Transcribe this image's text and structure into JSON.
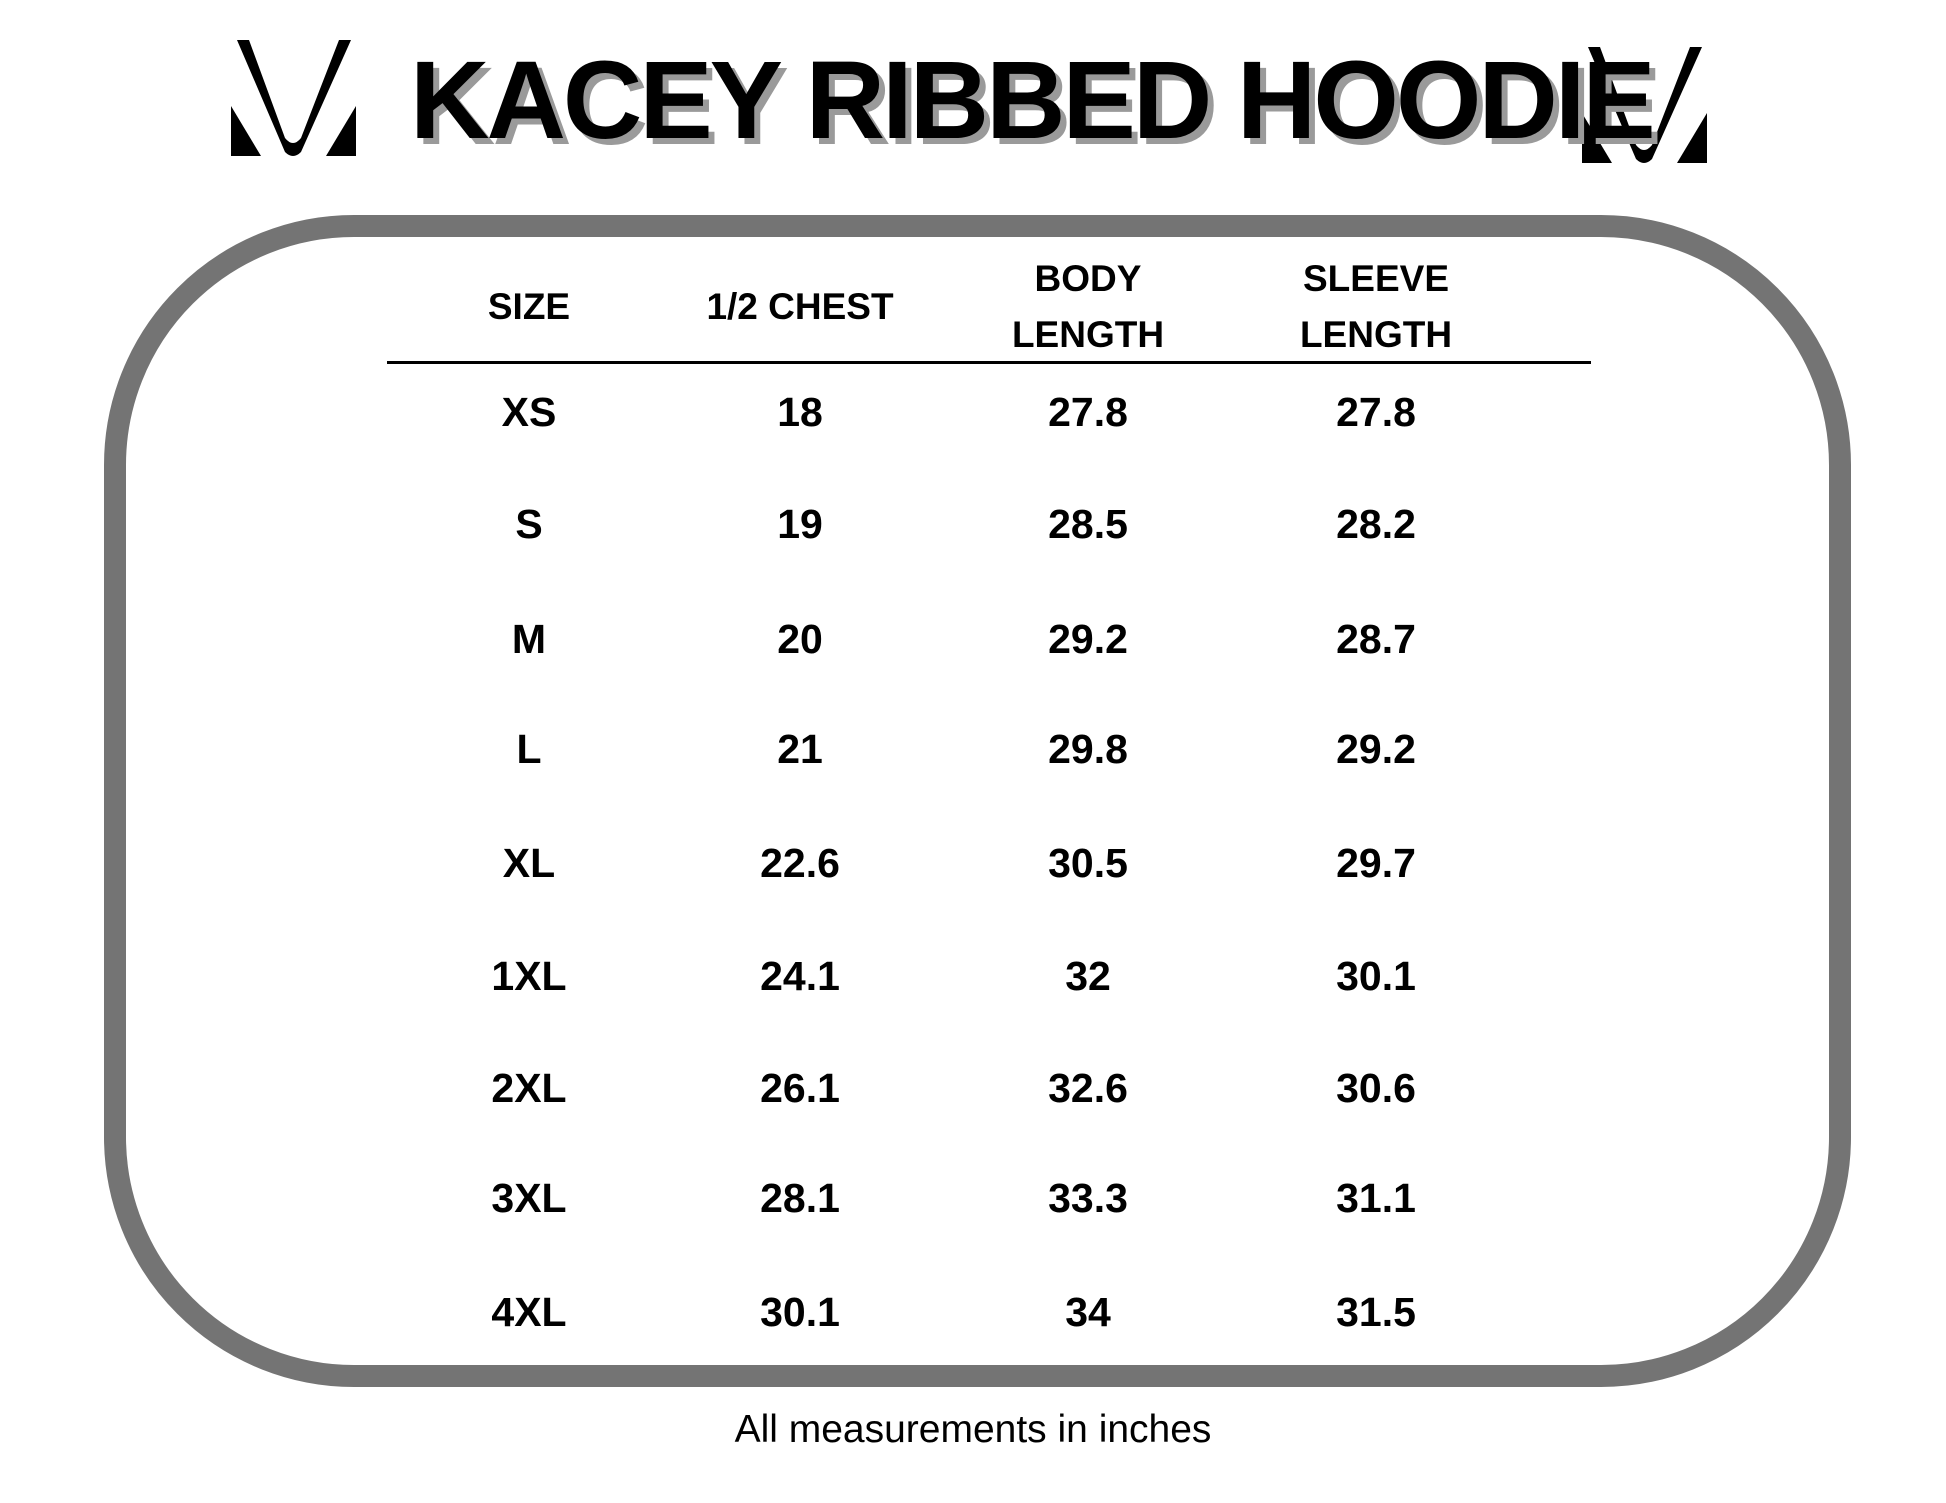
{
  "title": "KACEY RIBBED HOODIE",
  "logo_icon": "brand-v-logo",
  "colors": {
    "border": "#747474",
    "title_shadow": "#9a9a9a",
    "text": "#000000"
  },
  "table": {
    "headers": [
      "SIZE",
      "1/2 CHEST",
      "BODY\nLENGTH",
      "SLEEVE\nLENGTH"
    ],
    "header_lines": [
      [
        "SIZE"
      ],
      [
        "1/2 CHEST"
      ],
      [
        "BODY",
        "LENGTH"
      ],
      [
        "SLEEVE",
        "LENGTH"
      ]
    ],
    "rows": [
      [
        "XS",
        "18",
        "27.8",
        "27.8"
      ],
      [
        "S",
        "19",
        "28.5",
        "28.2"
      ],
      [
        "M",
        "20",
        "29.2",
        "28.7"
      ],
      [
        "L",
        "21",
        "29.8",
        "29.2"
      ],
      [
        "XL",
        "22.6",
        "30.5",
        "29.7"
      ],
      [
        "1XL",
        "24.1",
        "32",
        "30.1"
      ],
      [
        "2XL",
        "26.1",
        "32.6",
        "30.6"
      ],
      [
        "3XL",
        "28.1",
        "33.3",
        "31.1"
      ],
      [
        "4XL",
        "30.1",
        "34",
        "31.5"
      ]
    ]
  },
  "footer": "All measurements in inches"
}
